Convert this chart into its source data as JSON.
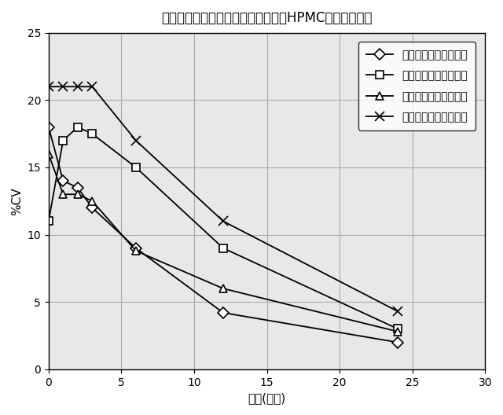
{
  "title": "３型溶解を使用したゼラチンおよびHPMCロットの変動",
  "xlabel": "時間(時間)",
  "ylabel": "%CV",
  "xlim": [
    0,
    30
  ],
  "ylim": [
    0,
    25
  ],
  "xticks": [
    0,
    5,
    10,
    15,
    20,
    25,
    30
  ],
  "yticks": [
    0,
    5,
    10,
    15,
    20,
    25
  ],
  "series": [
    {
      "label": "試験１、ロット番号１",
      "x": [
        0,
        1,
        2,
        3,
        6,
        12,
        24
      ],
      "y": [
        18,
        14,
        13.5,
        12,
        9.0,
        4.2,
        2.0
      ],
      "marker": "D",
      "markersize": 7,
      "color": "black",
      "linestyle": "-"
    },
    {
      "label": "試験１、ロット番号２",
      "x": [
        0,
        1,
        2,
        3,
        6,
        12,
        24
      ],
      "y": [
        11,
        17,
        18,
        17.5,
        15,
        9.0,
        3.0
      ],
      "marker": "s",
      "markersize": 7,
      "color": "black",
      "linestyle": "-"
    },
    {
      "label": "試験２、ロット番号１",
      "x": [
        0,
        1,
        2,
        3,
        6,
        12,
        24
      ],
      "y": [
        16,
        13,
        13,
        12.5,
        8.8,
        6.0,
        2.8
      ],
      "marker": "^",
      "markersize": 7,
      "color": "black",
      "linestyle": "-"
    },
    {
      "label": "試験２、ロット番号２",
      "x": [
        0,
        1,
        2,
        3,
        6,
        12,
        24
      ],
      "y": [
        21,
        21,
        21,
        21,
        17,
        11,
        4.3
      ],
      "marker": "x",
      "markersize": 8,
      "color": "black",
      "linestyle": "-"
    }
  ],
  "grid_color": "#aaaaaa",
  "background_color": "#e8e8e8",
  "legend_loc": "upper right",
  "title_fontsize": 12,
  "axis_label_fontsize": 11,
  "tick_fontsize": 10,
  "legend_fontsize": 10
}
